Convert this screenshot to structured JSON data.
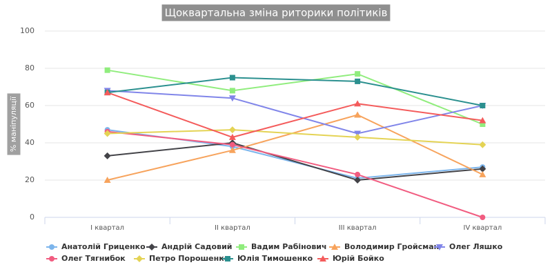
{
  "chart_data": {
    "type": "line",
    "title": "Щоквартальна зміна риторики політиків",
    "y_label": "% маніпуляції",
    "categories": [
      "I квартал",
      "II квартал",
      "III квартал",
      "IV квартал"
    ],
    "ylim": [
      0,
      100
    ],
    "yticks": [
      0,
      20,
      40,
      60,
      80,
      100
    ],
    "grid": true,
    "series": [
      {
        "name": "Анатолій Гриценко",
        "color": "#7cb5ec",
        "marker": "circle",
        "values": [
          47,
          38,
          21,
          27
        ]
      },
      {
        "name": "Андрій Садовий",
        "color": "#434348",
        "marker": "diamond",
        "values": [
          33,
          40,
          20,
          26
        ]
      },
      {
        "name": "Вадим Рабінович",
        "color": "#90ed7d",
        "marker": "square",
        "values": [
          79,
          68,
          77,
          50
        ]
      },
      {
        "name": "Володимир Гройсман",
        "color": "#f7a35c",
        "marker": "triangle",
        "values": [
          20,
          36,
          55,
          23
        ]
      },
      {
        "name": "Олег Ляшко",
        "color": "#8085e9",
        "marker": "triangle-down",
        "values": [
          68,
          64,
          45,
          60
        ]
      },
      {
        "name": "Олег Тягнибок",
        "color": "#f15c80",
        "marker": "circle",
        "values": [
          46,
          39,
          23,
          0
        ]
      },
      {
        "name": "Петро Порошенко",
        "color": "#e4d354",
        "marker": "diamond",
        "values": [
          45,
          47,
          43,
          39
        ]
      },
      {
        "name": "Юлія Тимошенко",
        "color": "#2b908f",
        "marker": "square",
        "values": [
          67,
          75,
          73,
          60
        ]
      },
      {
        "name": "Юрій Бойко",
        "color": "#f45b5b",
        "marker": "triangle",
        "values": [
          67,
          43,
          61,
          52
        ]
      }
    ]
  }
}
